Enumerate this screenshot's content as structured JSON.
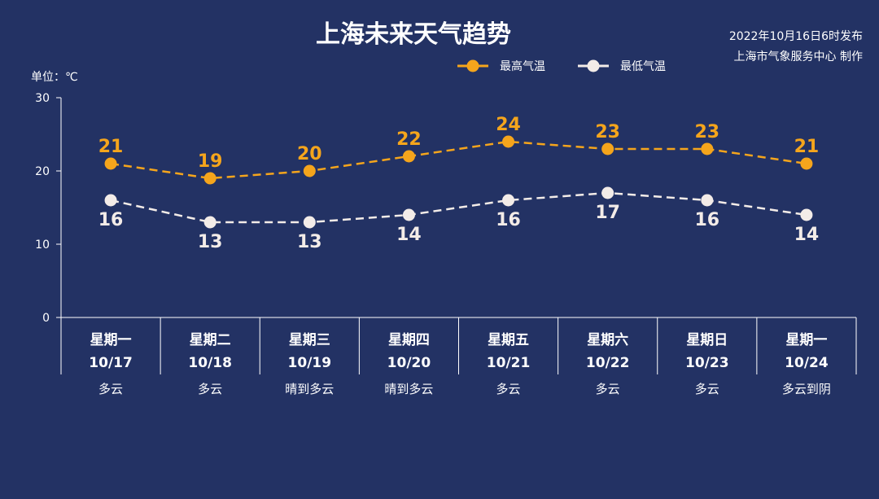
{
  "header": {
    "title": "上海未来天气趋势",
    "issued": "2022年10月16日6时发布",
    "publisher": "上海市气象服务中心 制作"
  },
  "unit_label": "单位：℃",
  "colors": {
    "background": "#233264",
    "high": "#f5a51c",
    "low": "#f3ece8",
    "axis": "#ffffff"
  },
  "chart_data": {
    "type": "line",
    "title": "上海未来天气趋势",
    "ylabel": "单位：℃",
    "ylim": [
      0,
      30
    ],
    "yticks": [
      0,
      10,
      20,
      30
    ],
    "grid": false,
    "legend_position": "top-right",
    "days": [
      {
        "weekday": "星期一",
        "date": "10/17",
        "weather": "多云"
      },
      {
        "weekday": "星期二",
        "date": "10/18",
        "weather": "多云"
      },
      {
        "weekday": "星期三",
        "date": "10/19",
        "weather": "晴到多云"
      },
      {
        "weekday": "星期四",
        "date": "10/20",
        "weather": "晴到多云"
      },
      {
        "weekday": "星期五",
        "date": "10/21",
        "weather": "多云"
      },
      {
        "weekday": "星期六",
        "date": "10/22",
        "weather": "多云"
      },
      {
        "weekday": "星期日",
        "date": "10/23",
        "weather": "多云"
      },
      {
        "weekday": "星期一",
        "date": "10/24",
        "weather": "多云到阴"
      }
    ],
    "series": [
      {
        "name": "最高气温",
        "color": "#f5a51c",
        "values": [
          21,
          19,
          20,
          22,
          24,
          23,
          23,
          21
        ],
        "label_position": "above"
      },
      {
        "name": "最低气温",
        "color": "#f3ece8",
        "values": [
          16,
          13,
          13,
          14,
          16,
          17,
          16,
          14
        ],
        "label_position": "below"
      }
    ]
  }
}
